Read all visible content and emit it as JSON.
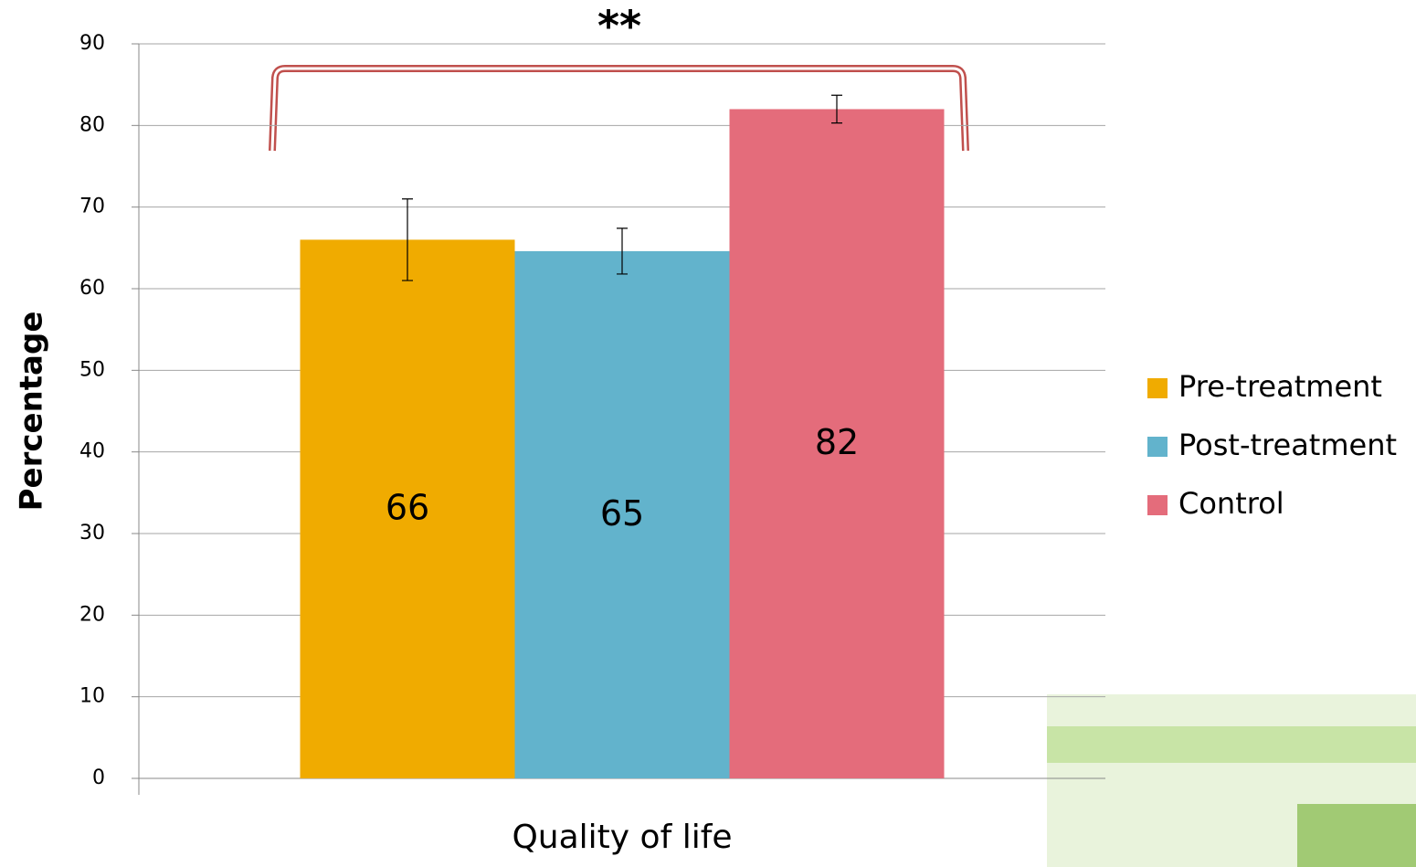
{
  "chart_data": {
    "type": "bar",
    "ylabel": "Percentage",
    "annotation": "**",
    "categories": [
      "Quality of life"
    ],
    "series": [
      {
        "name": "Pre-treatment",
        "color": "#f0ab00",
        "values": [
          66
        ],
        "errors": [
          5
        ],
        "value_labels": [
          "66"
        ]
      },
      {
        "name": "Post-treatment",
        "color": "#62b3cc",
        "values": [
          64.6
        ],
        "errors": [
          2.8
        ],
        "value_labels": [
          "65"
        ]
      },
      {
        "name": "Control",
        "color": "#e46c7b",
        "values": [
          82
        ],
        "errors": [
          1.7
        ],
        "value_labels": [
          "82"
        ]
      }
    ],
    "ylim": [
      0,
      90
    ],
    "yticks": [
      0,
      10,
      20,
      30,
      40,
      50,
      60,
      70,
      80,
      90
    ],
    "grid": true
  }
}
